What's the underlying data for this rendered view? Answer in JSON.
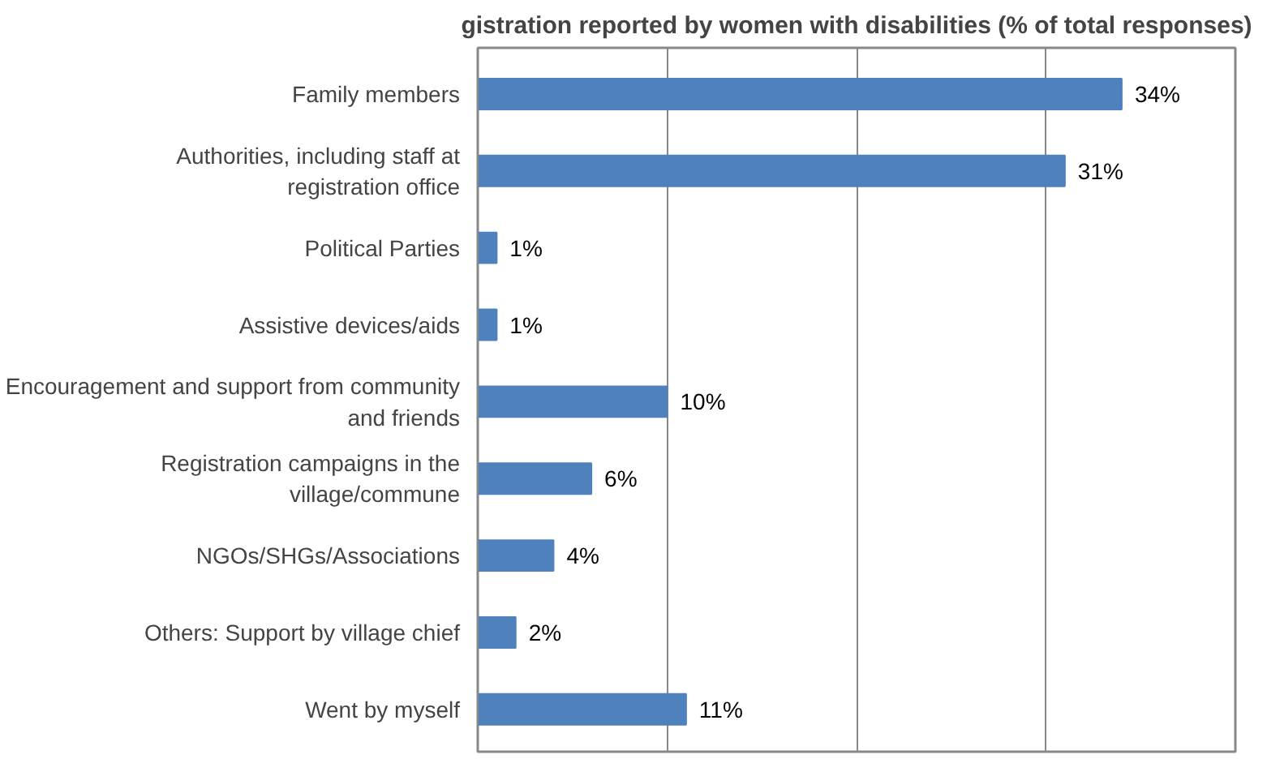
{
  "chart_data": {
    "type": "bar",
    "orientation": "horizontal",
    "title": "gistration reported by women with disabilities (% of total responses)",
    "categories": [
      "Family members",
      "Authorities, including staff at registration office",
      "Political Parties",
      "Assistive devices/aids",
      "Encouragement and support from community and friends",
      "Registration campaigns in the village/commune",
      "NGOs/SHGs/Associations",
      "Others: Support by village chief",
      "Went by myself"
    ],
    "values": [
      34,
      31,
      1,
      1,
      10,
      6,
      4,
      2,
      11
    ],
    "value_labels": [
      "34%",
      "31%",
      "1%",
      "1%",
      "10%",
      "6%",
      "4%",
      "2%",
      "11%"
    ],
    "color": "#4f81bd",
    "xlim": [
      0,
      40
    ],
    "xticks": [
      {
        "value": 0,
        "label": null
      },
      {
        "value": 10,
        "label": null
      },
      {
        "value": 20,
        "label": null
      },
      {
        "value": 30,
        "label": null
      },
      {
        "value": 40,
        "label": null
      }
    ],
    "grid": "x",
    "tick_labels": "y"
  }
}
